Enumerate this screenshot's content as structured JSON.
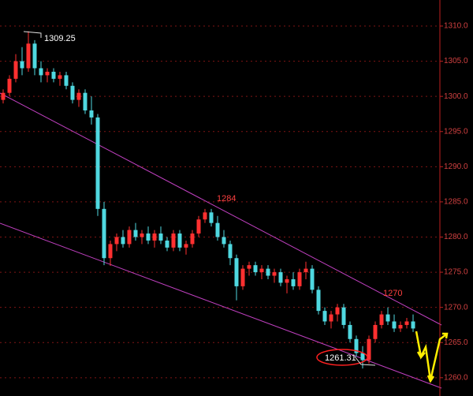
{
  "chart_data": {
    "type": "candlestick",
    "up_color": "#ff3030",
    "down_color": "#4fd8e0",
    "grid": true,
    "ylim": [
      1257.4,
      1313.7
    ],
    "yticks": [
      {
        "value": 1260,
        "label": "1260.0"
      },
      {
        "value": 1265,
        "label": "1265.0"
      },
      {
        "value": 1270,
        "label": "1270.0"
      },
      {
        "value": 1275,
        "label": "1275.0"
      },
      {
        "value": 1280,
        "label": "1280.0"
      },
      {
        "value": 1285,
        "label": "1285.0"
      },
      {
        "value": 1290,
        "label": "1290.0"
      },
      {
        "value": 1295,
        "label": "1295.0"
      },
      {
        "value": 1300,
        "label": "1300.0"
      },
      {
        "value": 1305,
        "label": "1305.0"
      },
      {
        "value": 1310,
        "label": "1310.0"
      }
    ],
    "open": [
      1299.5,
      1300.5,
      1302.5,
      1305,
      1304,
      1307.5,
      1304,
      1303,
      1303.5,
      1302.5,
      1303,
      1301.5,
      1299.5,
      1300.5,
      1298,
      1297,
      1284,
      1277,
      1279,
      1280,
      1279,
      1281,
      1280,
      1280.5,
      1279.5,
      1280.5,
      1279.5,
      1278.5,
      1280.5,
      1278.5,
      1279,
      1280.5,
      1282.5,
      1283.5,
      1282,
      1280,
      1279,
      1277,
      1273,
      1275.5,
      1276,
      1275,
      1275.5,
      1274.5,
      1275,
      1273.5,
      1274,
      1273,
      1275,
      1275.5,
      1272.5,
      1269.5,
      1268,
      1269,
      1270,
      1267.5,
      1265.5,
      1263.5,
      1262.5,
      1265.5,
      1267.5,
      1269,
      1268,
      1267,
      1267.5,
      1268
    ],
    "high": [
      1301,
      1303,
      1306,
      1307,
      1309.25,
      1308,
      1305,
      1304,
      1304,
      1303.5,
      1303.5,
      1302,
      1301,
      1301,
      1300,
      1297.5,
      1285,
      1279.5,
      1280.5,
      1281,
      1281.5,
      1282,
      1281,
      1281.5,
      1281,
      1281.5,
      1280,
      1281,
      1281,
      1279.5,
      1281,
      1283,
      1284,
      1284,
      1283,
      1281,
      1279.5,
      1277.5,
      1276,
      1276.5,
      1276.5,
      1276,
      1276,
      1275.5,
      1275.5,
      1274.5,
      1275,
      1275.5,
      1276.5,
      1276,
      1273,
      1270,
      1269.5,
      1270.5,
      1270.5,
      1268,
      1266,
      1264.5,
      1266,
      1268,
      1269.5,
      1270,
      1269,
      1268,
      1268.5,
      1269
    ],
    "low": [
      1299,
      1300,
      1302,
      1303,
      1303.5,
      1303,
      1302,
      1302,
      1302,
      1301.5,
      1301,
      1299,
      1298.5,
      1297.5,
      1296,
      1283,
      1276,
      1275.9,
      1278,
      1278.5,
      1278.5,
      1279.5,
      1279,
      1279,
      1278.5,
      1279,
      1278,
      1278,
      1278,
      1277.5,
      1278.5,
      1280,
      1282,
      1281.5,
      1279.5,
      1278.5,
      1276,
      1271,
      1272.5,
      1274.5,
      1274.5,
      1274,
      1274,
      1273.5,
      1273,
      1272,
      1272.5,
      1272.5,
      1274,
      1272,
      1269,
      1267.5,
      1267,
      1268,
      1267,
      1265,
      1263,
      1261.31,
      1262,
      1265,
      1267,
      1267.5,
      1266.5,
      1266.5,
      1267,
      1266.5
    ],
    "close": [
      1300.5,
      1302.5,
      1305,
      1304,
      1307.5,
      1304,
      1303,
      1303.5,
      1302.5,
      1303,
      1301.5,
      1299.5,
      1300.5,
      1298,
      1297,
      1284,
      1277,
      1279,
      1280,
      1279,
      1281,
      1280,
      1280.5,
      1279.5,
      1280.5,
      1279.5,
      1278.5,
      1280.5,
      1278.5,
      1279,
      1280.5,
      1282.5,
      1283.5,
      1282,
      1280,
      1279,
      1277,
      1273,
      1275.5,
      1276,
      1275,
      1275.5,
      1274.5,
      1275,
      1273.5,
      1274,
      1273,
      1275,
      1275.5,
      1272.5,
      1269.5,
      1268,
      1269,
      1270,
      1267.5,
      1265.5,
      1263.5,
      1262.5,
      1265.5,
      1267.5,
      1269,
      1268,
      1267,
      1267.5,
      1268,
      1267
    ],
    "annotations": [
      "1309.25",
      "1284",
      "1270",
      "1261.31"
    ]
  }
}
